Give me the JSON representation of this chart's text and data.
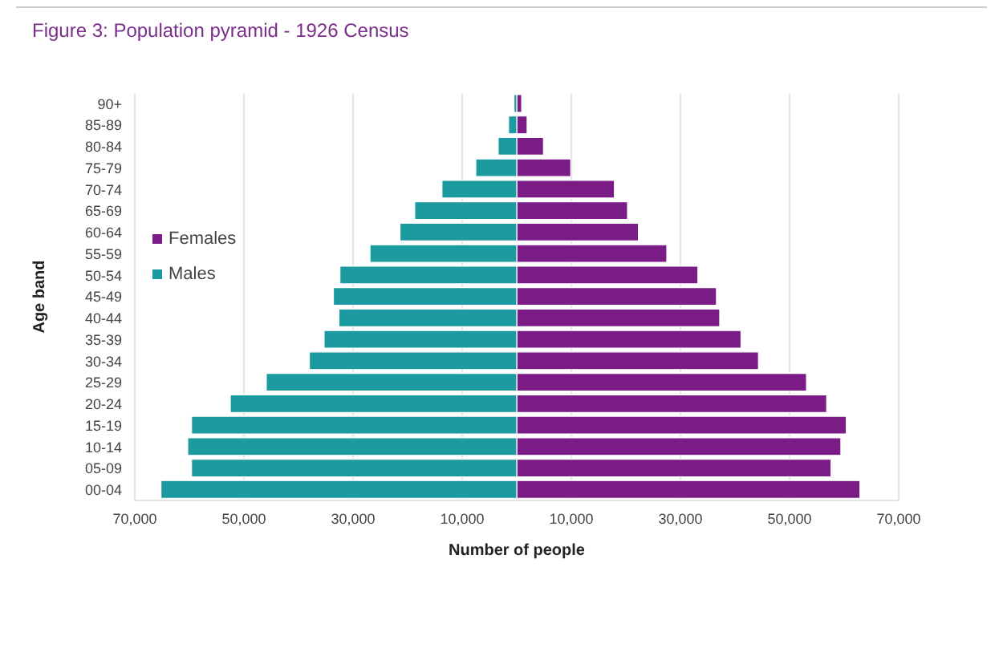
{
  "chart_data": {
    "type": "bar",
    "orientation": "horizontal",
    "stacked": true,
    "title": "Figure 3: Population pyramid - 1926 Census",
    "xlabel": "Number of people",
    "ylabel": "Age band",
    "categories": [
      "90+",
      "85-89",
      "80-84",
      "75-79",
      "70-74",
      "65-69",
      "60-64",
      "55-59",
      "50-54",
      "45-49",
      "40-44",
      "35-39",
      "30-34",
      "25-29",
      "20-24",
      "15-19",
      "10-14",
      "05-09",
      "00-04"
    ],
    "series": [
      {
        "name": "Females",
        "color": "#7b1c86",
        "values": [
          900,
          1900,
          4900,
          9900,
          17900,
          20300,
          22300,
          27500,
          33200,
          36600,
          37200,
          41100,
          44300,
          53100,
          56800,
          60400,
          59400,
          57600,
          62900
        ]
      },
      {
        "name": "Males",
        "color": "#1b9aa0",
        "values": [
          -500,
          -1500,
          -3400,
          -7500,
          -13700,
          -18700,
          -21400,
          -26900,
          -32400,
          -33600,
          -32600,
          -35300,
          -38000,
          -45900,
          -52500,
          -59600,
          -60300,
          -59600,
          -65200
        ]
      }
    ],
    "xlim": [
      -70000,
      70000
    ],
    "xticks": [
      {
        "value": -70000,
        "label": "70,000"
      },
      {
        "value": -50000,
        "label": "50,000"
      },
      {
        "value": -30000,
        "label": "30,000"
      },
      {
        "value": -10000,
        "label": "10,000"
      },
      {
        "value": 10000,
        "label": "10,000"
      },
      {
        "value": 30000,
        "label": "30,000"
      },
      {
        "value": 50000,
        "label": "50,000"
      },
      {
        "value": 70000,
        "label": "70,000"
      }
    ],
    "grid": "x",
    "legend": "top left"
  }
}
